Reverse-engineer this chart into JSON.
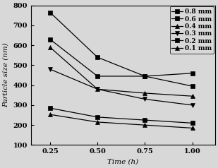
{
  "x": [
    0.25,
    0.5,
    0.75,
    1.0
  ],
  "series": [
    {
      "label": "0.8 mm",
      "values": [
        765,
        540,
        445,
        460
      ],
      "marker": "s",
      "color": "#000000",
      "ms": 4
    },
    {
      "label": "0.6 mm",
      "values": [
        630,
        445,
        445,
        395
      ],
      "marker": "s",
      "color": "#000000",
      "ms": 4
    },
    {
      "label": "0.4 mm",
      "values": [
        590,
        380,
        360,
        345
      ],
      "marker": "^",
      "color": "#000000",
      "ms": 4
    },
    {
      "label": "0.3 mm",
      "values": [
        480,
        380,
        330,
        300
      ],
      "marker": "v",
      "color": "#000000",
      "ms": 4
    },
    {
      "label": "0.2 mm",
      "values": [
        285,
        240,
        225,
        210
      ],
      "marker": "s",
      "color": "#000000",
      "ms": 4
    },
    {
      "label": "0.1 mm",
      "values": [
        253,
        215,
        200,
        185
      ],
      "marker": "^",
      "color": "#000000",
      "ms": 4
    }
  ],
  "xlabel": "Time (h)",
  "ylabel": "Particle size (nm)",
  "xlim": [
    0.15,
    1.12
  ],
  "ylim": [
    100,
    800
  ],
  "xticks": [
    0.25,
    0.5,
    0.75,
    1.0
  ],
  "xtick_labels": [
    "0.25",
    "0.50",
    "0.75",
    "1.00"
  ],
  "yticks": [
    100,
    200,
    300,
    400,
    500,
    600,
    700,
    800
  ],
  "background_color": "#f0f0f0",
  "axis_fontsize": 7.5,
  "tick_fontsize": 7,
  "legend_fontsize": 6.5
}
